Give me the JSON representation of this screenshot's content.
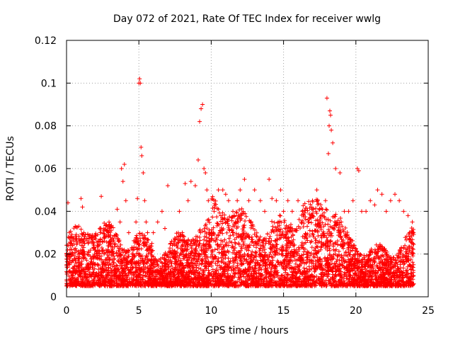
{
  "chart_data": {
    "type": "scatter",
    "title": "Day 072 of 2021, Rate Of TEC Index for receiver wwlg",
    "xlabel": "GPS time / hours",
    "ylabel": "ROTI / TECUs",
    "xlim": [
      0,
      25
    ],
    "ylim": [
      0,
      0.12
    ],
    "xticks": [
      0,
      5,
      10,
      15,
      20,
      25
    ],
    "xtick_labels": [
      "0",
      "5",
      "10",
      "15",
      "20",
      "25"
    ],
    "yticks": [
      0,
      0.02,
      0.04,
      0.06,
      0.08,
      0.1,
      0.12
    ],
    "ytick_labels": [
      "0",
      "0.02",
      "0.04",
      "0.06",
      "0.08",
      "0.1",
      "0.12"
    ],
    "grid": true,
    "marker": "+",
    "marker_color": "#ff0000",
    "series": [
      {
        "name": "ROTI",
        "x": [
          0.0,
          0.1,
          0.2,
          0.2,
          0.3,
          0.5,
          0.6,
          0.8,
          1.0,
          1.1,
          1.2,
          1.3,
          1.5,
          1.8,
          2.0,
          2.3,
          2.4,
          2.6,
          2.9,
          3.0,
          3.3,
          3.5,
          3.7,
          3.8,
          3.9,
          4.0,
          4.1,
          4.3,
          4.6,
          4.8,
          4.9,
          5.0,
          5.05,
          5.1,
          5.15,
          5.2,
          5.3,
          5.4,
          5.5,
          5.6,
          5.9,
          6.0,
          6.3,
          6.6,
          6.8,
          7.0,
          7.2,
          7.5,
          7.8,
          8.0,
          8.2,
          8.4,
          8.6,
          8.9,
          9.1,
          9.2,
          9.3,
          9.4,
          9.5,
          9.6,
          9.7,
          9.8,
          10.0,
          10.2,
          10.5,
          10.8,
          11.0,
          11.2,
          11.5,
          11.8,
          12.0,
          12.3,
          12.6,
          13.0,
          13.4,
          13.7,
          14.0,
          14.2,
          14.5,
          14.8,
          15.0,
          15.3,
          15.6,
          16.0,
          16.3,
          16.7,
          17.0,
          17.3,
          17.6,
          17.9,
          18.0,
          18.1,
          18.15,
          18.2,
          18.25,
          18.3,
          18.4,
          18.6,
          18.9,
          19.2,
          19.5,
          19.8,
          20.1,
          20.2,
          20.4,
          20.7,
          21.0,
          21.3,
          21.5,
          21.8,
          22.1,
          22.4,
          22.7,
          23.0,
          23.3,
          23.6,
          23.9
        ],
        "y": [
          0.02,
          0.044,
          0.03,
          0.015,
          0.025,
          0.012,
          0.033,
          0.02,
          0.046,
          0.042,
          0.03,
          0.018,
          0.025,
          0.028,
          0.015,
          0.032,
          0.047,
          0.02,
          0.03,
          0.026,
          0.018,
          0.041,
          0.035,
          0.06,
          0.054,
          0.062,
          0.045,
          0.03,
          0.02,
          0.035,
          0.046,
          0.1,
          0.102,
          0.1,
          0.07,
          0.066,
          0.058,
          0.045,
          0.035,
          0.03,
          0.025,
          0.03,
          0.035,
          0.04,
          0.032,
          0.052,
          0.025,
          0.02,
          0.04,
          0.03,
          0.053,
          0.045,
          0.054,
          0.052,
          0.064,
          0.082,
          0.088,
          0.09,
          0.06,
          0.058,
          0.05,
          0.045,
          0.03,
          0.04,
          0.05,
          0.05,
          0.048,
          0.045,
          0.04,
          0.045,
          0.05,
          0.055,
          0.045,
          0.05,
          0.045,
          0.04,
          0.055,
          0.046,
          0.045,
          0.05,
          0.04,
          0.045,
          0.04,
          0.045,
          0.04,
          0.035,
          0.045,
          0.05,
          0.038,
          0.045,
          0.093,
          0.067,
          0.08,
          0.087,
          0.085,
          0.078,
          0.072,
          0.06,
          0.058,
          0.04,
          0.04,
          0.045,
          0.06,
          0.059,
          0.04,
          0.04,
          0.045,
          0.043,
          0.05,
          0.048,
          0.04,
          0.045,
          0.048,
          0.045,
          0.04,
          0.038,
          0.035
        ]
      }
    ]
  }
}
